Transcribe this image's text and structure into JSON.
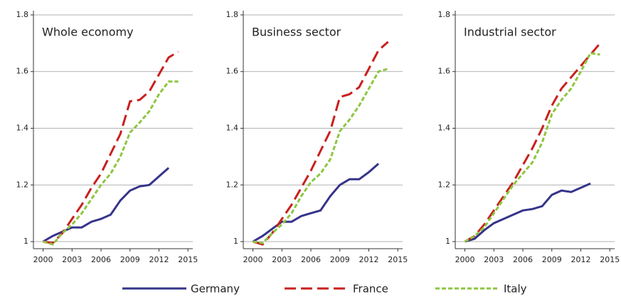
{
  "chart_data": [
    {
      "type": "line",
      "title": "Whole economy",
      "x": [
        2000,
        2001,
        2002,
        2003,
        2004,
        2005,
        2006,
        2007,
        2008,
        2009,
        2010,
        2011,
        2012,
        2013,
        2014
      ],
      "xlim": [
        1999,
        2015.5
      ],
      "xticks": [
        2000,
        2003,
        2006,
        2009,
        2012,
        2015
      ],
      "ylim": [
        0.975,
        1.815
      ],
      "yticks": [
        1,
        1.2,
        1.4,
        1.6,
        1.8
      ],
      "grid": true,
      "series": [
        {
          "name": "Germany",
          "color": "#36348a",
          "dash": "solid",
          "values": [
            1.0,
            1.02,
            1.035,
            1.05,
            1.05,
            1.07,
            1.08,
            1.095,
            1.145,
            1.18,
            1.195,
            1.2,
            1.23,
            1.26,
            null
          ]
        },
        {
          "name": "France",
          "color": "#c8201e",
          "dash": "long",
          "values": [
            1.0,
            0.995,
            1.03,
            1.08,
            1.13,
            1.19,
            1.24,
            1.31,
            1.38,
            1.495,
            1.5,
            1.53,
            1.59,
            1.65,
            1.67
          ]
        },
        {
          "name": "Italy",
          "color": "#8dc63f",
          "dash": "short",
          "values": [
            1.0,
            0.99,
            1.03,
            1.06,
            1.1,
            1.15,
            1.2,
            1.24,
            1.3,
            1.385,
            1.42,
            1.46,
            1.52,
            1.565,
            1.565
          ]
        }
      ]
    },
    {
      "type": "line",
      "title": "Business sector",
      "x": [
        2000,
        2001,
        2002,
        2003,
        2004,
        2005,
        2006,
        2007,
        2008,
        2009,
        2010,
        2011,
        2012,
        2013,
        2014
      ],
      "xlim": [
        1999,
        2015.5
      ],
      "xticks": [
        2000,
        2003,
        2006,
        2009,
        2012,
        2015
      ],
      "ylim": [
        0.975,
        1.815
      ],
      "yticks": [
        1,
        1.2,
        1.4,
        1.6,
        1.8
      ],
      "grid": true,
      "series": [
        {
          "name": "Germany",
          "color": "#36348a",
          "dash": "solid",
          "values": [
            1.0,
            1.02,
            1.045,
            1.07,
            1.07,
            1.09,
            1.1,
            1.11,
            1.16,
            1.2,
            1.22,
            1.22,
            1.245,
            1.275,
            null
          ]
        },
        {
          "name": "France",
          "color": "#c8201e",
          "dash": "long",
          "values": [
            1.0,
            0.99,
            1.03,
            1.08,
            1.13,
            1.19,
            1.25,
            1.32,
            1.39,
            1.51,
            1.52,
            1.545,
            1.61,
            1.675,
            1.705
          ]
        },
        {
          "name": "Italy",
          "color": "#8dc63f",
          "dash": "short",
          "values": [
            1.0,
            0.995,
            1.03,
            1.06,
            1.1,
            1.16,
            1.21,
            1.24,
            1.29,
            1.39,
            1.43,
            1.48,
            1.54,
            1.6,
            1.61
          ]
        }
      ]
    },
    {
      "type": "line",
      "title": "Industrial sector",
      "x": [
        2000,
        2001,
        2002,
        2003,
        2004,
        2005,
        2006,
        2007,
        2008,
        2009,
        2010,
        2011,
        2012,
        2013,
        2014
      ],
      "xlim": [
        1999,
        2015.5
      ],
      "xticks": [
        2000,
        2003,
        2006,
        2009,
        2012,
        2015
      ],
      "ylim": [
        0.975,
        1.815
      ],
      "yticks": [
        1,
        1.2,
        1.4,
        1.6,
        1.8
      ],
      "grid": true,
      "series": [
        {
          "name": "Germany",
          "color": "#36348a",
          "dash": "solid",
          "values": [
            1.0,
            1.01,
            1.04,
            1.065,
            1.08,
            1.095,
            1.11,
            1.115,
            1.125,
            1.165,
            1.18,
            1.175,
            1.19,
            1.205,
            null
          ]
        },
        {
          "name": "France",
          "color": "#c8201e",
          "dash": "long",
          "values": [
            1.0,
            1.02,
            1.06,
            1.11,
            1.16,
            1.21,
            1.27,
            1.33,
            1.4,
            1.48,
            1.54,
            1.58,
            1.62,
            1.66,
            1.7
          ]
        },
        {
          "name": "Italy",
          "color": "#8dc63f",
          "dash": "short",
          "values": [
            1.0,
            1.02,
            1.05,
            1.1,
            1.15,
            1.2,
            1.24,
            1.28,
            1.35,
            1.45,
            1.5,
            1.54,
            1.6,
            1.665,
            1.66
          ]
        }
      ]
    }
  ]
}
